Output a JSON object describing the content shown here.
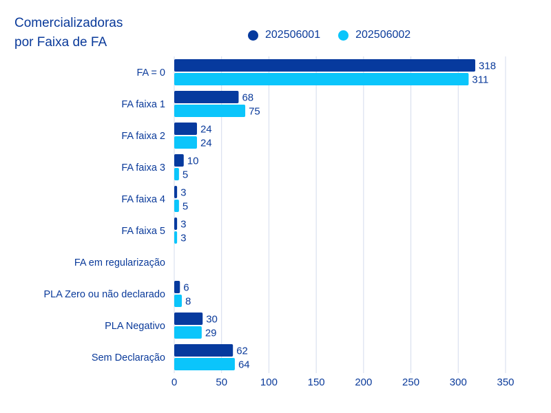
{
  "chart_data": {
    "type": "bar",
    "orientation": "horizontal",
    "title": "Comercializadoras por Faixa de FA",
    "title_lines": [
      "Comercializadoras",
      "por Faixa de FA"
    ],
    "categories": [
      "FA = 0",
      "FA faixa 1",
      "FA faixa 2",
      "FA faixa 3",
      "FA faixa 4",
      "FA faixa 5",
      "FA em regularização",
      "PLA Zero ou não declarado",
      "PLA Negativo",
      "Sem Declaração"
    ],
    "series": [
      {
        "name": "202506001",
        "color": "#063a9e",
        "values": [
          318,
          68,
          24,
          10,
          3,
          3,
          null,
          6,
          30,
          62
        ]
      },
      {
        "name": "202506002",
        "color": "#0bc5fb",
        "values": [
          311,
          75,
          24,
          5,
          5,
          3,
          null,
          8,
          29,
          64
        ]
      }
    ],
    "xlim": [
      0,
      350
    ],
    "xticks": [
      0,
      50,
      100,
      150,
      200,
      250,
      300,
      350
    ],
    "xlabel": "",
    "ylabel": "",
    "grid": "vertical",
    "legend_position": "top",
    "data_labels": true
  }
}
